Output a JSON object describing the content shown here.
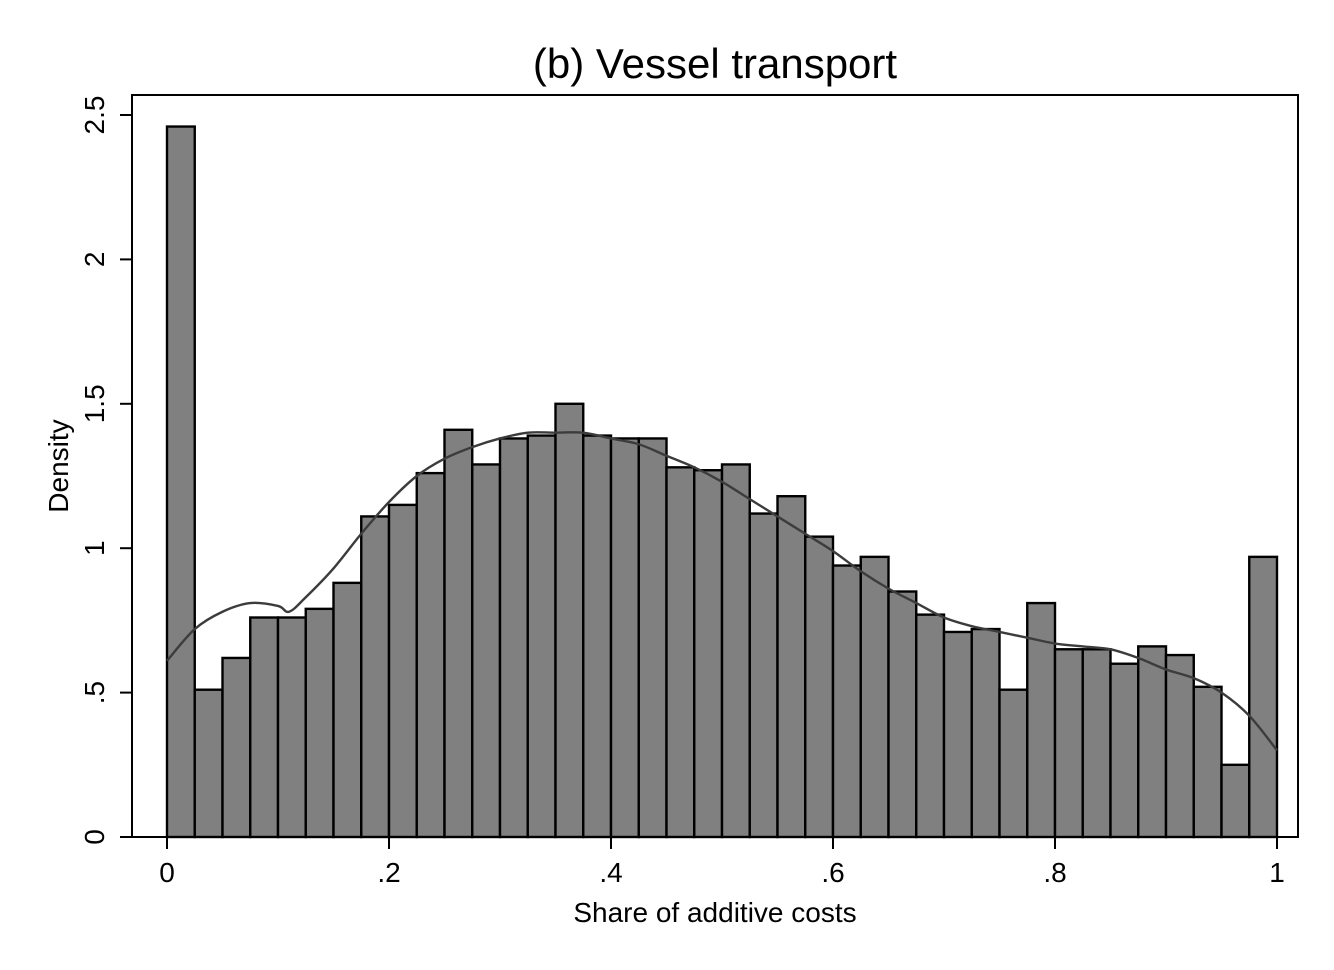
{
  "chart_data": {
    "type": "bar",
    "title": "(b) Vessel transport",
    "xlabel": "Share of additive costs",
    "ylabel": "Density",
    "xlim": [
      0,
      1
    ],
    "ylim": [
      0,
      2.5
    ],
    "xticks": [
      {
        "value": 0,
        "label": "0"
      },
      {
        "value": 0.2,
        "label": ".2"
      },
      {
        "value": 0.4,
        "label": ".4"
      },
      {
        "value": 0.6,
        "label": ".6"
      },
      {
        "value": 0.8,
        "label": ".8"
      },
      {
        "value": 1,
        "label": "1"
      }
    ],
    "yticks": [
      {
        "value": 0,
        "label": "0"
      },
      {
        "value": 0.5,
        "label": ".5"
      },
      {
        "value": 1,
        "label": "1"
      },
      {
        "value": 1.5,
        "label": "1.5"
      },
      {
        "value": 2,
        "label": "2"
      },
      {
        "value": 2.5,
        "label": "2.5"
      }
    ],
    "grid": false,
    "bins": {
      "start": 0,
      "width": 0.025
    },
    "values": [
      2.46,
      0.51,
      0.62,
      0.76,
      0.76,
      0.79,
      0.88,
      1.11,
      1.15,
      1.26,
      1.41,
      1.29,
      1.38,
      1.39,
      1.5,
      1.39,
      1.38,
      1.38,
      1.28,
      1.27,
      1.29,
      1.12,
      1.18,
      1.04,
      0.94,
      0.97,
      0.85,
      0.77,
      0.71,
      0.72,
      0.51,
      0.81,
      0.65,
      0.65,
      0.6,
      0.66,
      0.63,
      0.52,
      0.25,
      0.97
    ],
    "density_curve": {
      "x": [
        0,
        0.025,
        0.05,
        0.075,
        0.1,
        0.11,
        0.125,
        0.15,
        0.175,
        0.2,
        0.225,
        0.25,
        0.275,
        0.3,
        0.325,
        0.35,
        0.375,
        0.4,
        0.425,
        0.45,
        0.475,
        0.5,
        0.525,
        0.55,
        0.575,
        0.6,
        0.625,
        0.65,
        0.675,
        0.7,
        0.725,
        0.75,
        0.775,
        0.8,
        0.825,
        0.85,
        0.875,
        0.9,
        0.925,
        0.95,
        0.975,
        1.0
      ],
      "y": [
        0.61,
        0.72,
        0.78,
        0.81,
        0.8,
        0.78,
        0.83,
        0.93,
        1.05,
        1.16,
        1.25,
        1.31,
        1.35,
        1.38,
        1.4,
        1.4,
        1.4,
        1.38,
        1.36,
        1.32,
        1.28,
        1.23,
        1.17,
        1.11,
        1.05,
        0.99,
        0.92,
        0.86,
        0.81,
        0.76,
        0.73,
        0.71,
        0.69,
        0.67,
        0.66,
        0.65,
        0.62,
        0.58,
        0.55,
        0.5,
        0.42,
        0.3
      ]
    }
  }
}
